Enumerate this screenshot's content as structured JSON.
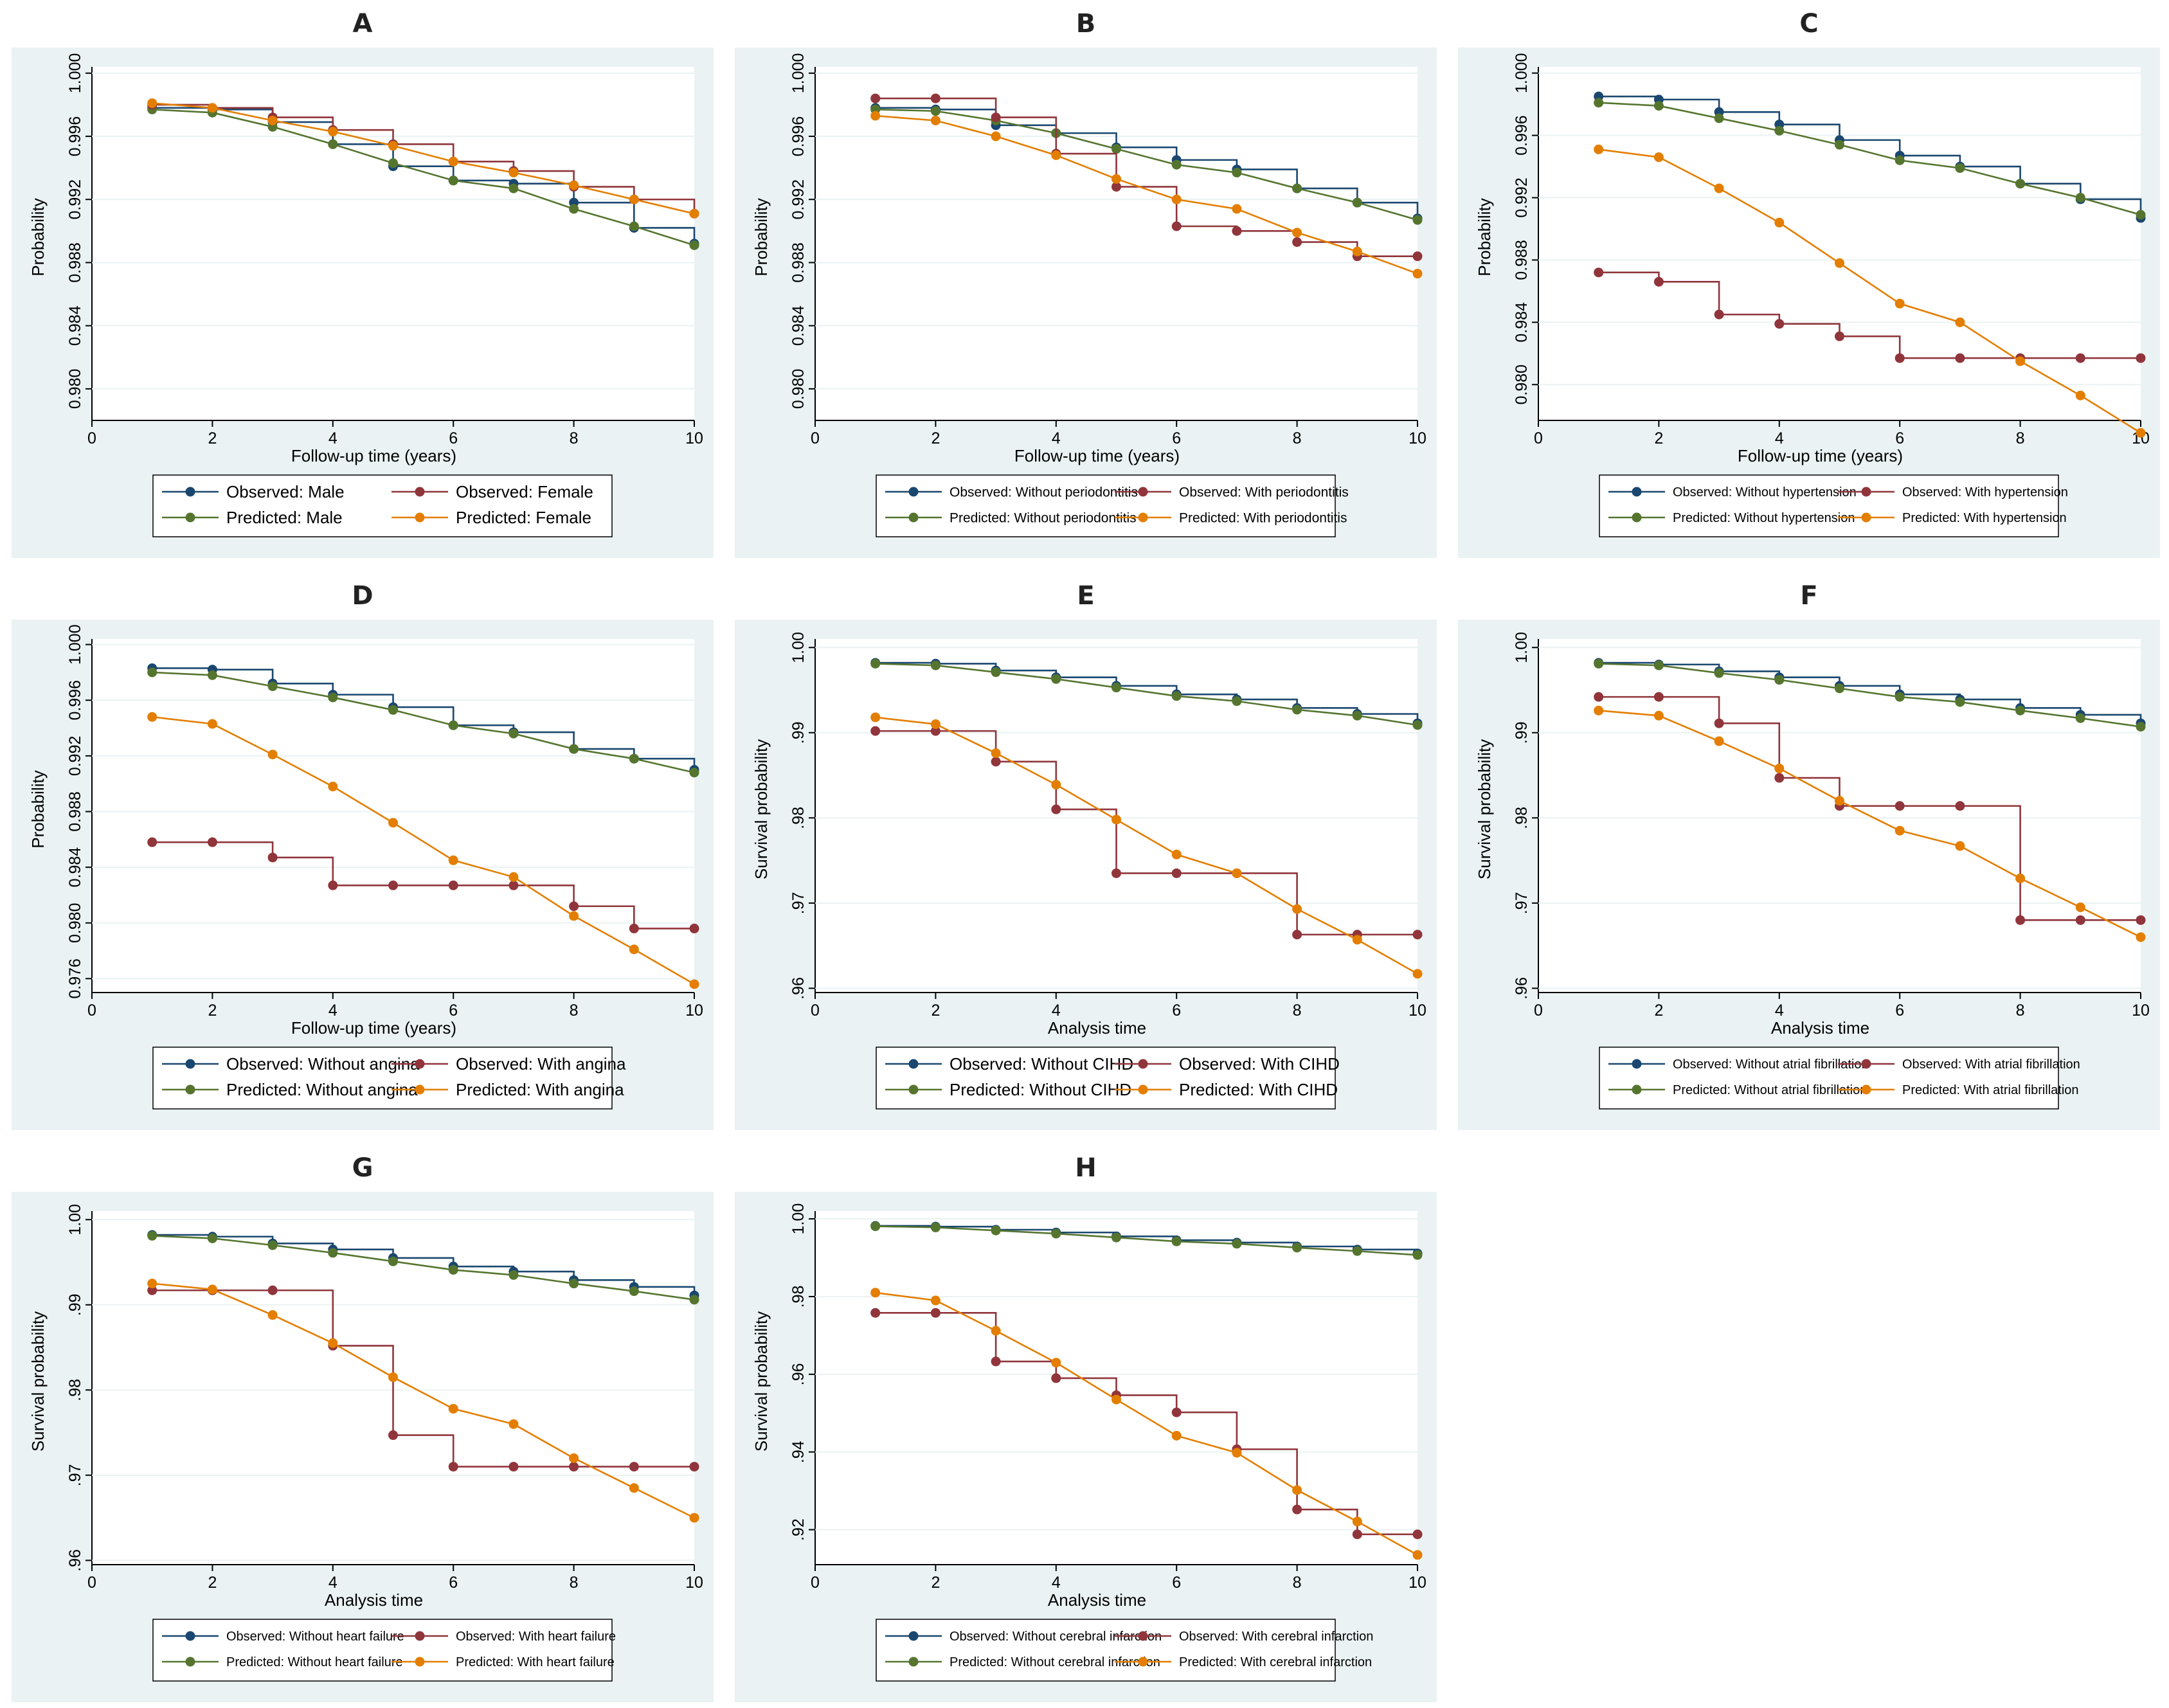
{
  "colors": {
    "plot_bg": "#eaf2f3",
    "observed_a": "#1a476f",
    "observed_b": "#90353b",
    "predicted_a": "#55752f",
    "predicted_b": "#e37e00",
    "gridline": "#eaf2f3"
  },
  "chart_data": [
    {
      "id": "A",
      "type": "line",
      "title": "A",
      "xlabel": "Follow-up time (years)",
      "ylabel": "Probability",
      "xlim": [
        0,
        10
      ],
      "xticks": [
        0,
        2,
        4,
        6,
        8,
        10
      ],
      "ylim": [
        0.978,
        1.0004
      ],
      "yticks": [
        "0.980",
        "0.984",
        "0.988",
        "0.992",
        "0.996",
        "1.000"
      ],
      "legend_font": 26,
      "x": [
        1,
        2,
        3,
        4,
        5,
        6,
        7,
        8,
        9,
        10
      ],
      "series": [
        {
          "name": "Observed: Male",
          "kind": "observed",
          "color_key": "observed_a",
          "values": [
            0.9978,
            0.9977,
            0.9969,
            0.9955,
            0.9941,
            0.9932,
            0.993,
            0.9918,
            0.9902,
            0.9892
          ]
        },
        {
          "name": "Observed: Female",
          "kind": "observed",
          "color_key": "observed_b",
          "values": [
            0.998,
            0.9978,
            0.9972,
            0.9964,
            0.9955,
            0.9944,
            0.9938,
            0.9928,
            0.992,
            0.9911
          ]
        },
        {
          "name": "Predicted: Male",
          "kind": "predicted",
          "color_key": "predicted_a",
          "values": [
            0.9977,
            0.9975,
            0.9966,
            0.9955,
            0.9943,
            0.9932,
            0.9927,
            0.9914,
            0.9903,
            0.9891
          ]
        },
        {
          "name": "Predicted: Female",
          "kind": "predicted",
          "color_key": "predicted_b",
          "values": [
            0.9981,
            0.9978,
            0.997,
            0.9963,
            0.9954,
            0.9944,
            0.9937,
            0.9929,
            0.992,
            0.9911
          ]
        }
      ]
    },
    {
      "id": "B",
      "type": "line",
      "title": "B",
      "xlabel": "Follow-up time (years)",
      "ylabel": "Probability",
      "xlim": [
        0,
        10
      ],
      "xticks": [
        0,
        2,
        4,
        6,
        8,
        10
      ],
      "ylim": [
        0.978,
        1.0004
      ],
      "yticks": [
        "0.980",
        "0.984",
        "0.988",
        "0.992",
        "0.996",
        "1.000"
      ],
      "legend_font": 21,
      "x": [
        1,
        2,
        3,
        4,
        5,
        6,
        7,
        8,
        9,
        10
      ],
      "series": [
        {
          "name": "Observed: Without periodontitis",
          "kind": "observed",
          "color_key": "observed_a",
          "values": [
            0.9978,
            0.9977,
            0.9967,
            0.9962,
            0.9953,
            0.9945,
            0.9939,
            0.9927,
            0.9918,
            0.9908
          ]
        },
        {
          "name": "Observed: With periodontitis",
          "kind": "observed",
          "color_key": "observed_b",
          "values": [
            0.9984,
            0.9984,
            0.9972,
            0.9949,
            0.9928,
            0.9903,
            0.99,
            0.9893,
            0.9884,
            0.9884
          ]
        },
        {
          "name": "Predicted: Without periodontitis",
          "kind": "predicted",
          "color_key": "predicted_a",
          "values": [
            0.9977,
            0.9976,
            0.997,
            0.9962,
            0.9952,
            0.9942,
            0.9937,
            0.9927,
            0.9918,
            0.9907
          ]
        },
        {
          "name": "Predicted: With periodontitis",
          "kind": "predicted",
          "color_key": "predicted_b",
          "values": [
            0.9973,
            0.997,
            0.996,
            0.9948,
            0.9933,
            0.992,
            0.9914,
            0.9899,
            0.9887,
            0.9873
          ]
        }
      ]
    },
    {
      "id": "C",
      "type": "line",
      "title": "C",
      "xlabel": "Follow-up time (years)",
      "ylabel": "Probability",
      "xlim": [
        0,
        10
      ],
      "xticks": [
        0,
        2,
        4,
        6,
        8,
        10
      ],
      "ylim": [
        0.9777,
        1.0004
      ],
      "yticks": [
        "0.980",
        "0.984",
        "0.988",
        "0.992",
        "0.996",
        "1.000"
      ],
      "legend_font": 20,
      "x": [
        1,
        2,
        3,
        4,
        5,
        6,
        7,
        8,
        9,
        10
      ],
      "series": [
        {
          "name": "Observed: Without hypertension",
          "kind": "observed",
          "color_key": "observed_a",
          "values": [
            0.9985,
            0.9983,
            0.9975,
            0.9967,
            0.9957,
            0.9947,
            0.994,
            0.9929,
            0.9919,
            0.9907
          ]
        },
        {
          "name": "Observed: With hypertension",
          "kind": "observed",
          "color_key": "observed_b",
          "values": [
            0.9872,
            0.9866,
            0.9845,
            0.9839,
            0.9831,
            0.9817,
            0.9817,
            0.9817,
            0.9817,
            0.9817
          ]
        },
        {
          "name": "Predicted: Without hypertension",
          "kind": "predicted",
          "color_key": "predicted_a",
          "values": [
            0.9981,
            0.9979,
            0.9971,
            0.9963,
            0.9954,
            0.9944,
            0.9939,
            0.9929,
            0.992,
            0.9909
          ]
        },
        {
          "name": "Predicted: With hypertension",
          "kind": "predicted",
          "color_key": "predicted_b",
          "values": [
            0.9951,
            0.9946,
            0.9926,
            0.9904,
            0.9878,
            0.9852,
            0.984,
            0.9815,
            0.9793,
            0.9769
          ]
        }
      ]
    },
    {
      "id": "D",
      "type": "line",
      "title": "D",
      "xlabel": "Follow-up time (years)",
      "ylabel": "Probability",
      "xlim": [
        0,
        10
      ],
      "xticks": [
        0,
        2,
        4,
        6,
        8,
        10
      ],
      "ylim": [
        0.975,
        1.0004
      ],
      "yticks": [
        "0.976",
        "0.980",
        "0.984",
        "0.988",
        "0.992",
        "0.996",
        "1.000"
      ],
      "legend_font": 26,
      "x": [
        1,
        2,
        3,
        4,
        5,
        6,
        7,
        8,
        9,
        10
      ],
      "series": [
        {
          "name": "Observed: Without angina",
          "kind": "observed",
          "color_key": "observed_a",
          "values": [
            0.9983,
            0.9982,
            0.9972,
            0.9964,
            0.9955,
            0.9942,
            0.9937,
            0.9925,
            0.9918,
            0.991
          ]
        },
        {
          "name": "Observed: With angina",
          "kind": "observed",
          "color_key": "observed_b",
          "values": [
            0.9858,
            0.9858,
            0.9847,
            0.9827,
            0.9827,
            0.9827,
            0.9827,
            0.9812,
            0.9796,
            0.9796
          ]
        },
        {
          "name": "Predicted: Without angina",
          "kind": "predicted",
          "color_key": "predicted_a",
          "values": [
            0.998,
            0.9978,
            0.997,
            0.9962,
            0.9953,
            0.9942,
            0.9936,
            0.9925,
            0.9918,
            0.9908
          ]
        },
        {
          "name": "Predicted: With angina",
          "kind": "predicted",
          "color_key": "predicted_b",
          "values": [
            0.9948,
            0.9943,
            0.9921,
            0.9898,
            0.9872,
            0.9845,
            0.9833,
            0.9805,
            0.9781,
            0.9756
          ]
        }
      ]
    },
    {
      "id": "E",
      "type": "line",
      "title": "E",
      "xlabel": "Analysis time",
      "ylabel": "Survival probability",
      "xlim": [
        0,
        10
      ],
      "xticks": [
        0,
        2,
        4,
        6,
        8,
        10
      ],
      "ylim": [
        0.9595,
        1.001
      ],
      "yticks": [
        ".96",
        ".97",
        ".98",
        ".99",
        "1.00"
      ],
      "ytick_values": [
        0.96,
        0.97,
        0.98,
        0.99,
        1.0
      ],
      "legend_font": 26,
      "x": [
        1,
        2,
        3,
        4,
        5,
        6,
        7,
        8,
        9,
        10
      ],
      "series": [
        {
          "name": "Observed: Without CIHD",
          "kind": "observed",
          "color_key": "observed_a",
          "values": [
            0.9982,
            0.9981,
            0.9973,
            0.9965,
            0.9955,
            0.9945,
            0.9939,
            0.9929,
            0.9922,
            0.9911
          ]
        },
        {
          "name": "Observed: With CIHD",
          "kind": "observed",
          "color_key": "observed_b",
          "values": [
            0.9902,
            0.9902,
            0.9866,
            0.981,
            0.9735,
            0.9735,
            0.9735,
            0.9663,
            0.9663,
            0.9663
          ]
        },
        {
          "name": "Predicted: Without CIHD",
          "kind": "predicted",
          "color_key": "predicted_a",
          "values": [
            0.9981,
            0.9979,
            0.9971,
            0.9963,
            0.9953,
            0.9943,
            0.9937,
            0.9927,
            0.992,
            0.9909
          ]
        },
        {
          "name": "Predicted: With CIHD",
          "kind": "predicted",
          "color_key": "predicted_b",
          "values": [
            0.9918,
            0.991,
            0.9876,
            0.9839,
            0.9798,
            0.9757,
            0.9735,
            0.9693,
            0.9657,
            0.9617
          ]
        }
      ]
    },
    {
      "id": "F",
      "type": "line",
      "title": "F",
      "xlabel": "Analysis time",
      "ylabel": "Survival probability",
      "xlim": [
        0,
        10
      ],
      "xticks": [
        0,
        2,
        4,
        6,
        8,
        10
      ],
      "ylim": [
        0.9595,
        1.001
      ],
      "yticks": [
        ".96",
        ".97",
        ".98",
        ".99",
        "1.00"
      ],
      "ytick_values": [
        0.96,
        0.97,
        0.98,
        0.99,
        1.0
      ],
      "legend_font": 20,
      "x": [
        1,
        2,
        3,
        4,
        5,
        6,
        7,
        8,
        9,
        10
      ],
      "series": [
        {
          "name": "Observed: Without atrial fibrillation",
          "kind": "observed",
          "color_key": "observed_a",
          "values": [
            0.9982,
            0.998,
            0.9972,
            0.9965,
            0.9955,
            0.9945,
            0.9939,
            0.9929,
            0.9921,
            0.9911
          ]
        },
        {
          "name": "Observed: With atrial fibrillation",
          "kind": "observed",
          "color_key": "observed_b",
          "values": [
            0.9942,
            0.9942,
            0.9911,
            0.9847,
            0.9814,
            0.9814,
            0.9814,
            0.968,
            0.968,
            0.968
          ]
        },
        {
          "name": "Predicted: Without atrial fibrillation",
          "kind": "predicted",
          "color_key": "predicted_a",
          "values": [
            0.9981,
            0.9979,
            0.997,
            0.9962,
            0.9952,
            0.9942,
            0.9936,
            0.9926,
            0.9917,
            0.9907
          ]
        },
        {
          "name": "Predicted: With atrial fibrillation",
          "kind": "predicted",
          "color_key": "predicted_b",
          "values": [
            0.9926,
            0.992,
            0.989,
            0.9858,
            0.982,
            0.9785,
            0.9767,
            0.9729,
            0.9695,
            0.966
          ]
        }
      ]
    },
    {
      "id": "G",
      "type": "line",
      "title": "G",
      "xlabel": "Analysis time",
      "ylabel": "Survival probability",
      "xlim": [
        0,
        10
      ],
      "xticks": [
        0,
        2,
        4,
        6,
        8,
        10
      ],
      "ylim": [
        0.9595,
        1.001
      ],
      "yticks": [
        ".96",
        ".97",
        ".98",
        ".99",
        "1.00"
      ],
      "ytick_values": [
        0.96,
        0.97,
        0.98,
        0.99,
        1.0
      ],
      "legend_font": 20,
      "x": [
        1,
        2,
        3,
        4,
        5,
        6,
        7,
        8,
        9,
        10
      ],
      "series": [
        {
          "name": "Observed: Without heart failure",
          "kind": "observed",
          "color_key": "observed_a",
          "values": [
            0.9982,
            0.998,
            0.9972,
            0.9965,
            0.9955,
            0.9945,
            0.9939,
            0.9929,
            0.9921,
            0.9911
          ]
        },
        {
          "name": "Observed: With heart failure",
          "kind": "observed",
          "color_key": "observed_b",
          "values": [
            0.9917,
            0.9917,
            0.9917,
            0.9852,
            0.9747,
            0.971,
            0.971,
            0.971,
            0.971,
            0.971
          ]
        },
        {
          "name": "Predicted: Without heart failure",
          "kind": "predicted",
          "color_key": "predicted_a",
          "values": [
            0.9981,
            0.9978,
            0.997,
            0.9961,
            0.9951,
            0.9941,
            0.9935,
            0.9925,
            0.9916,
            0.9906
          ]
        },
        {
          "name": "Predicted: With heart failure",
          "kind": "predicted",
          "color_key": "predicted_b",
          "values": [
            0.9925,
            0.9918,
            0.9888,
            0.9855,
            0.9815,
            0.9778,
            0.976,
            0.972,
            0.9685,
            0.965
          ]
        }
      ]
    },
    {
      "id": "H",
      "type": "line",
      "title": "H",
      "xlabel": "Analysis time",
      "ylabel": "Survival probability",
      "xlim": [
        0,
        10
      ],
      "xticks": [
        0,
        2,
        4,
        6,
        8,
        10
      ],
      "ylim": [
        0.911,
        1.002
      ],
      "yticks": [
        ".92",
        ".94",
        ".96",
        ".98",
        "1.00"
      ],
      "ytick_values": [
        0.92,
        0.94,
        0.96,
        0.98,
        1.0
      ],
      "legend_font": 20,
      "x": [
        1,
        2,
        3,
        4,
        5,
        6,
        7,
        8,
        9,
        10
      ],
      "series": [
        {
          "name": "Observed: Without cerebral infarction",
          "kind": "observed",
          "color_key": "observed_a",
          "values": [
            0.9982,
            0.998,
            0.9972,
            0.9965,
            0.9955,
            0.9945,
            0.9939,
            0.9929,
            0.9921,
            0.9911
          ]
        },
        {
          "name": "Observed: With cerebral infarction",
          "kind": "observed",
          "color_key": "observed_b",
          "values": [
            0.9758,
            0.9758,
            0.9633,
            0.959,
            0.9546,
            0.9502,
            0.9407,
            0.9252,
            0.9188,
            0.9188
          ]
        },
        {
          "name": "Predicted: Without cerebral infarction",
          "kind": "predicted",
          "color_key": "predicted_a",
          "values": [
            0.9981,
            0.9978,
            0.997,
            0.9962,
            0.9952,
            0.9942,
            0.9936,
            0.9926,
            0.9917,
            0.9907
          ]
        },
        {
          "name": "Predicted: With cerebral infarction",
          "kind": "predicted",
          "color_key": "predicted_b",
          "values": [
            0.981,
            0.979,
            0.9712,
            0.963,
            0.9535,
            0.9442,
            0.9398,
            0.9302,
            0.9221,
            0.9135
          ]
        }
      ]
    }
  ]
}
